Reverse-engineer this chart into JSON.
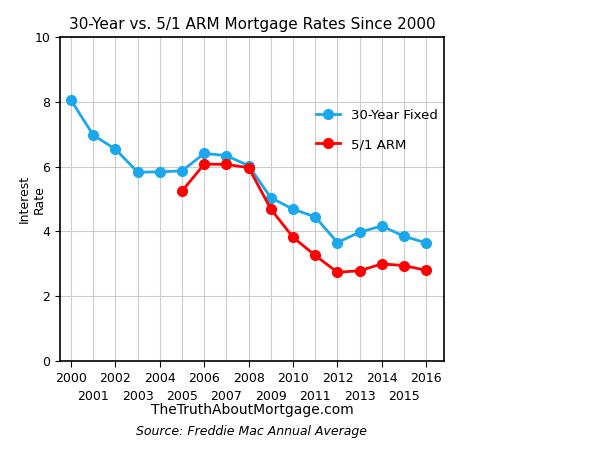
{
  "title": "30-Year vs. 5/1 ARM Mortgage Rates Since 2000",
  "xlabel_website": "TheTruthAboutMortgage.com",
  "xlabel_source": "Source: Freddie Mac Annual Average",
  "ylabel": "Interest\nRate",
  "years_fixed": [
    2000,
    2001,
    2002,
    2003,
    2004,
    2005,
    2006,
    2007,
    2008,
    2009,
    2010,
    2011,
    2012,
    2013,
    2014,
    2015,
    2016
  ],
  "rates_fixed": [
    8.05,
    6.97,
    6.54,
    5.83,
    5.84,
    5.87,
    6.41,
    6.34,
    6.03,
    5.04,
    4.69,
    4.45,
    3.66,
    3.98,
    4.17,
    3.85,
    3.65
  ],
  "years_arm": [
    2005,
    2006,
    2007,
    2008,
    2009,
    2010,
    2011,
    2012,
    2013,
    2014,
    2015,
    2016
  ],
  "rates_arm": [
    5.25,
    6.08,
    6.07,
    5.97,
    4.69,
    3.82,
    3.26,
    2.74,
    2.79,
    3.0,
    2.95,
    2.8
  ],
  "color_fixed": "#1aa7ec",
  "color_arm": "#ff0000",
  "ylim": [
    0,
    10
  ],
  "yticks": [
    0,
    2,
    4,
    6,
    8,
    10
  ],
  "xlim": [
    1999.5,
    2016.8
  ],
  "xticks_even": [
    2000,
    2002,
    2004,
    2006,
    2008,
    2010,
    2012,
    2014,
    2016
  ],
  "xticks_odd": [
    2001,
    2003,
    2005,
    2007,
    2009,
    2011,
    2013,
    2015
  ],
  "legend_fixed": "30-Year Fixed",
  "legend_arm": "5/1 ARM",
  "marker_size": 7,
  "linewidth": 2.0,
  "background_color": "#ffffff",
  "grid_color_major": "#cccccc",
  "grid_color_minor": "#cccccc",
  "spine_color": "#000000",
  "tick_fontsize": 9,
  "title_fontsize": 11,
  "ylabel_fontsize": 9,
  "website_fontsize": 10,
  "source_fontsize": 9
}
